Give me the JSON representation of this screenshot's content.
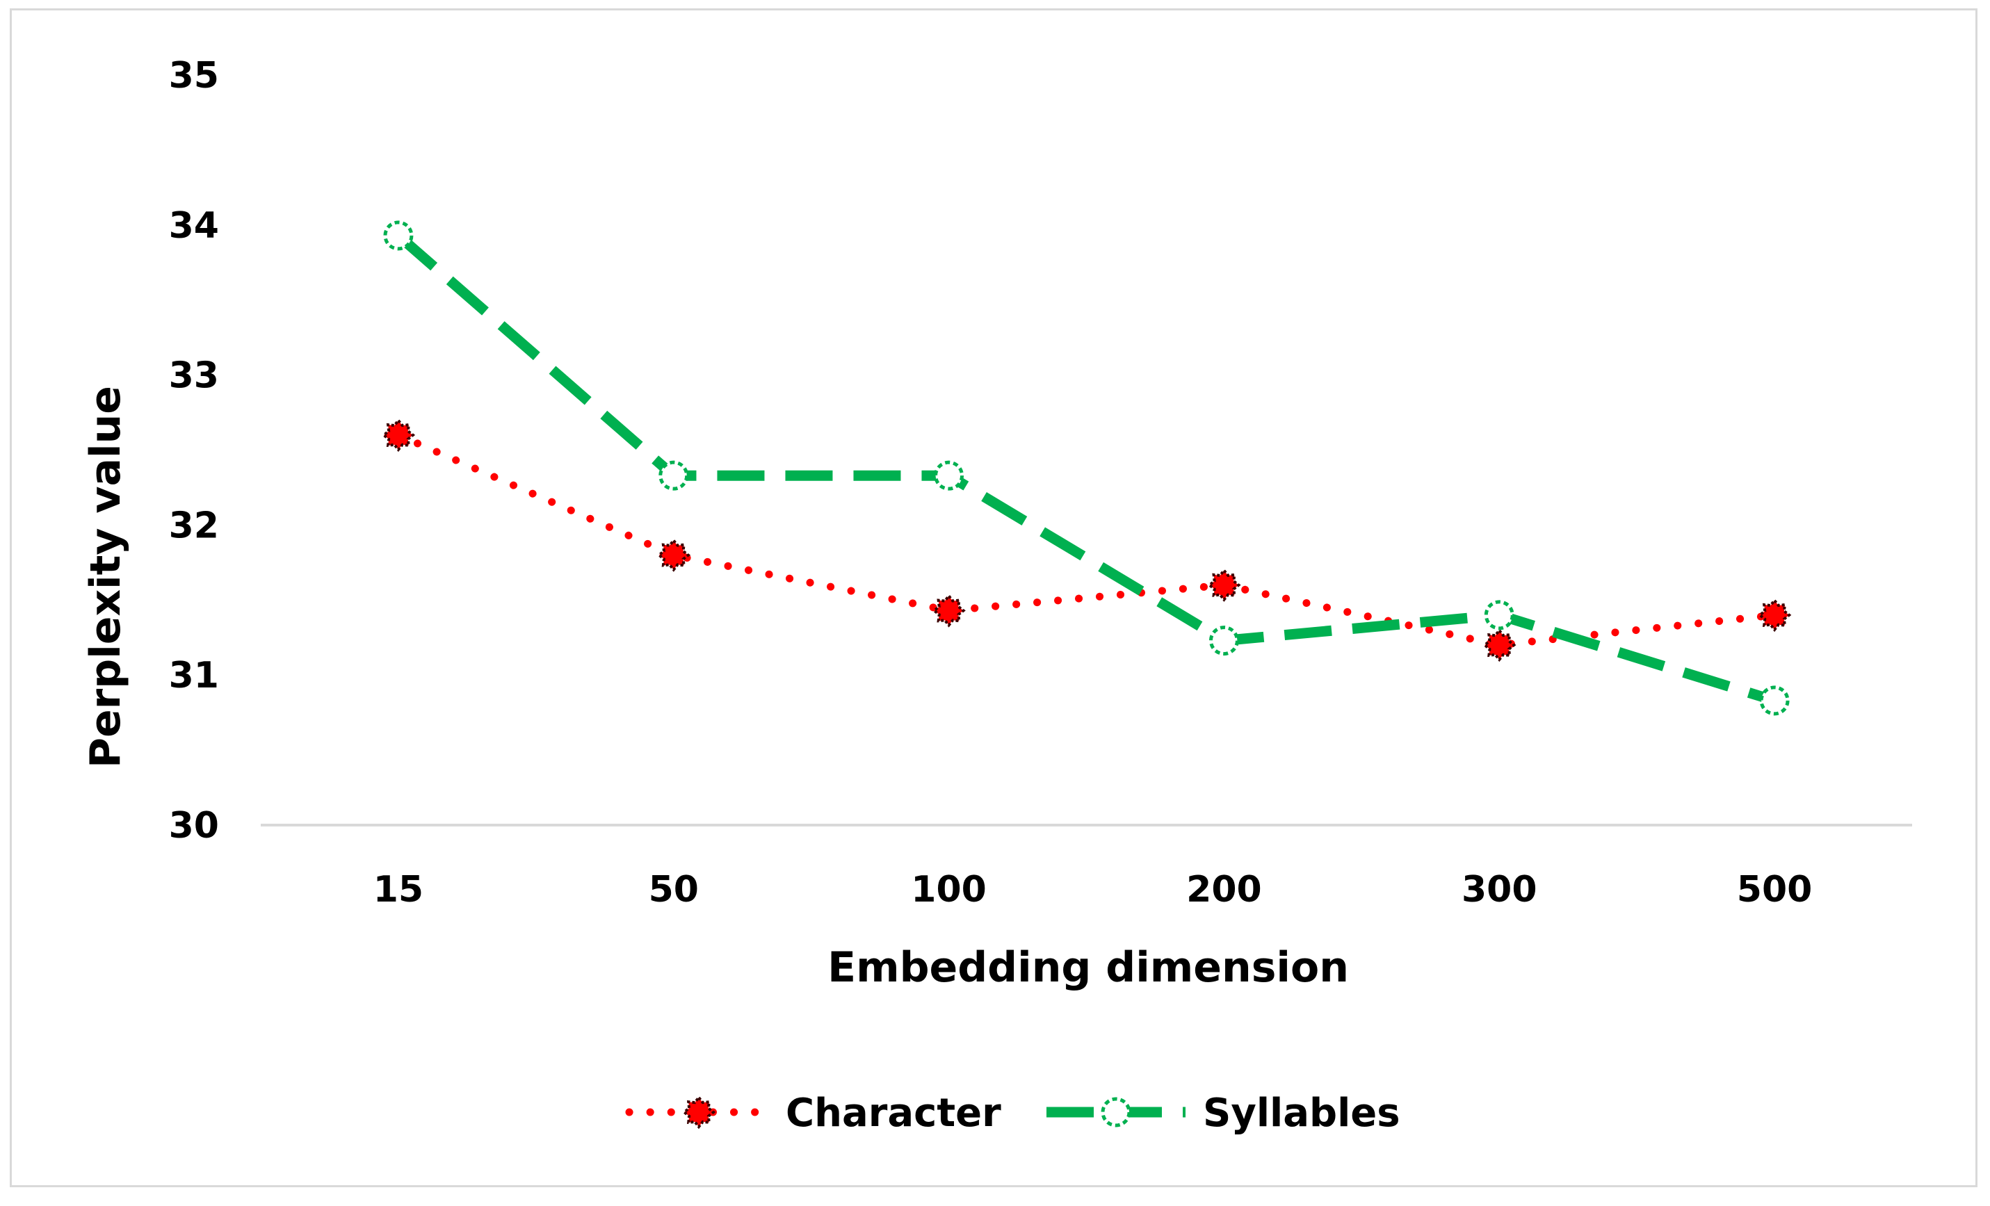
{
  "chart_data": {
    "type": "line",
    "title": "",
    "xlabel": "Embedding dimension",
    "ylabel": "Perplexity value",
    "categories": [
      "15",
      "50",
      "100",
      "200",
      "300",
      "500"
    ],
    "ylim": [
      30,
      35
    ],
    "yticks": [
      "30",
      "31",
      "32",
      "33",
      "34",
      "35"
    ],
    "grid": false,
    "legend_position": "bottom",
    "series": [
      {
        "name": "Character",
        "values": [
          32.6,
          31.8,
          31.43,
          31.6,
          31.2,
          31.4
        ],
        "color": "#ff0000",
        "marker_color": "#ff0000",
        "line_style": "dotted"
      },
      {
        "name": "Syllables",
        "values": [
          33.93,
          32.33,
          32.33,
          31.23,
          31.4,
          30.83
        ],
        "color": "#00b050",
        "marker_color": "#ffffff",
        "line_style": "dashed"
      }
    ]
  }
}
